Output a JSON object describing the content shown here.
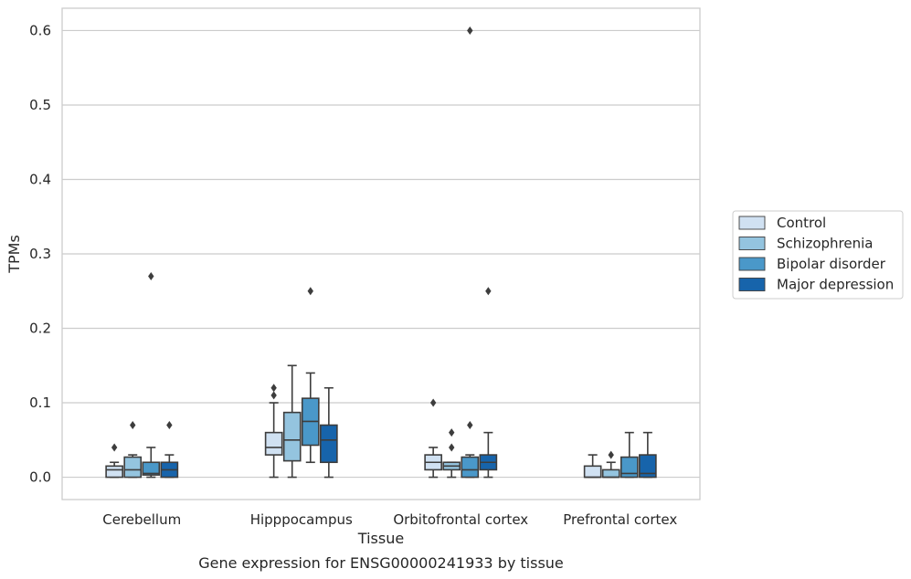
{
  "chart_data": {
    "type": "box",
    "title": "Gene expression for ENSG00000241933 by tissue",
    "xlabel": "Tissue",
    "ylabel": "TPMs",
    "ylim": [
      -0.03,
      0.63
    ],
    "yticks": [
      0.0,
      0.1,
      0.2,
      0.3,
      0.4,
      0.5,
      0.6
    ],
    "ytick_labels": [
      "0.0",
      "0.1",
      "0.2",
      "0.3",
      "0.4",
      "0.5",
      "0.6"
    ],
    "grid": "horizontal",
    "legend_position": "right",
    "categories": [
      "Cerebellum",
      "Hipppocampus",
      "Orbitofrontal cortex",
      "Prefrontal cortex"
    ],
    "series": [
      {
        "name": "Control",
        "color": "#d0e1f2",
        "boxes": [
          {
            "min": 0.0,
            "q1": 0.0,
            "median": 0.01,
            "q3": 0.015,
            "max": 0.02,
            "outliers": [
              0.04
            ]
          },
          {
            "min": 0.0,
            "q1": 0.03,
            "median": 0.04,
            "q3": 0.06,
            "max": 0.1,
            "outliers": [
              0.11,
              0.12
            ]
          },
          {
            "min": 0.0,
            "q1": 0.01,
            "median": 0.02,
            "q3": 0.03,
            "max": 0.04,
            "outliers": [
              0.1
            ]
          },
          {
            "min": 0.0,
            "q1": 0.0,
            "median": 0.0,
            "q3": 0.015,
            "max": 0.03,
            "outliers": []
          }
        ]
      },
      {
        "name": "Schizophrenia",
        "color": "#94c4df",
        "boxes": [
          {
            "min": 0.0,
            "q1": 0.0,
            "median": 0.01,
            "q3": 0.027,
            "max": 0.03,
            "outliers": [
              0.07
            ]
          },
          {
            "min": 0.0,
            "q1": 0.022,
            "median": 0.05,
            "q3": 0.087,
            "max": 0.15,
            "outliers": []
          },
          {
            "min": 0.0,
            "q1": 0.01,
            "median": 0.015,
            "q3": 0.02,
            "max": 0.02,
            "outliers": [
              0.04,
              0.06
            ]
          },
          {
            "min": 0.0,
            "q1": 0.0,
            "median": 0.0,
            "q3": 0.01,
            "max": 0.02,
            "outliers": [
              0.03
            ]
          }
        ]
      },
      {
        "name": "Bipolar disorder",
        "color": "#4a98c9",
        "boxes": [
          {
            "min": 0.0,
            "q1": 0.003,
            "median": 0.005,
            "q3": 0.02,
            "max": 0.04,
            "outliers": [
              0.27
            ]
          },
          {
            "min": 0.02,
            "q1": 0.043,
            "median": 0.075,
            "q3": 0.106,
            "max": 0.14,
            "outliers": [
              0.25
            ]
          },
          {
            "min": 0.0,
            "q1": 0.0,
            "median": 0.01,
            "q3": 0.027,
            "max": 0.03,
            "outliers": [
              0.07,
              0.6
            ]
          },
          {
            "min": 0.0,
            "q1": 0.0,
            "median": 0.005,
            "q3": 0.027,
            "max": 0.06,
            "outliers": []
          }
        ]
      },
      {
        "name": "Major depression",
        "color": "#1764ab",
        "boxes": [
          {
            "min": 0.0,
            "q1": 0.0,
            "median": 0.01,
            "q3": 0.02,
            "max": 0.03,
            "outliers": [
              0.07
            ]
          },
          {
            "min": 0.0,
            "q1": 0.02,
            "median": 0.05,
            "q3": 0.07,
            "max": 0.12,
            "outliers": []
          },
          {
            "min": 0.0,
            "q1": 0.01,
            "median": 0.02,
            "q3": 0.03,
            "max": 0.06,
            "outliers": [
              0.25
            ]
          },
          {
            "min": 0.0,
            "q1": 0.0,
            "median": 0.005,
            "q3": 0.03,
            "max": 0.06,
            "outliers": []
          }
        ]
      }
    ]
  }
}
